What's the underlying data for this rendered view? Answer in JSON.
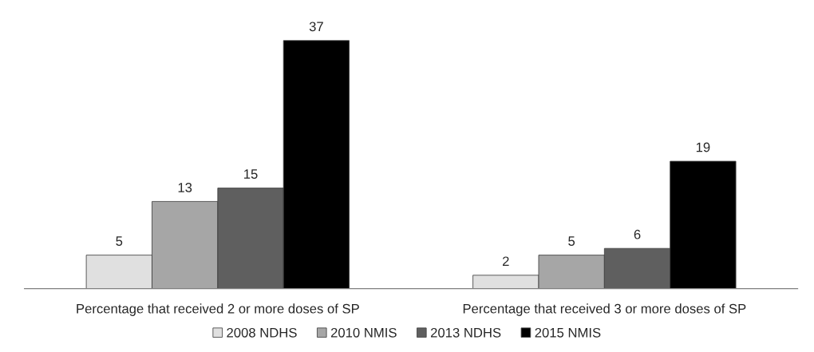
{
  "chart_data": {
    "type": "bar",
    "categories": [
      "Percentage that received 2 or more doses of SP",
      "Percentage that received 3 or more doses of SP"
    ],
    "series": [
      {
        "name": "2008 NDHS",
        "color": "#e0e0e0",
        "values": [
          5,
          2
        ]
      },
      {
        "name": "2010 NMIS",
        "color": "#a6a6a6",
        "values": [
          13,
          5
        ]
      },
      {
        "name": "2013 NDHS",
        "color": "#5f5f5f",
        "values": [
          15,
          6
        ]
      },
      {
        "name": "2015 NMIS",
        "color": "#000000",
        "values": [
          37,
          19
        ]
      }
    ],
    "data_labels": true,
    "legend": "bottom",
    "grid": false,
    "tick_labels": "x"
  }
}
